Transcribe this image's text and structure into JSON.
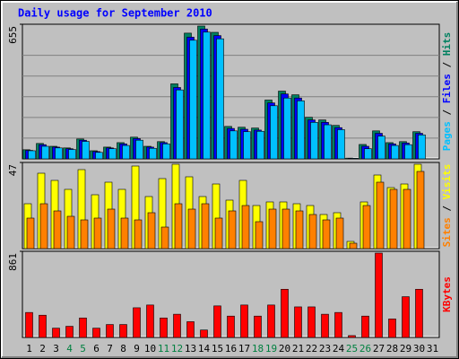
{
  "chart_data": [
    {
      "type": "bar",
      "title": "Daily usage for September 2010",
      "categories": [
        "1",
        "2",
        "3",
        "4",
        "5",
        "6",
        "7",
        "8",
        "9",
        "10",
        "11",
        "12",
        "13",
        "14",
        "15",
        "16",
        "17",
        "18",
        "19",
        "20",
        "21",
        "22",
        "23",
        "24",
        "25",
        "26",
        "27",
        "28",
        "29",
        "30",
        "31"
      ],
      "x_label_colors": [
        "#000000",
        "#000000",
        "#000000",
        "#008040",
        "#008040",
        "#000000",
        "#000000",
        "#000000",
        "#000000",
        "#000000",
        "#008040",
        "#008040",
        "#000000",
        "#000000",
        "#000000",
        "#000000",
        "#000000",
        "#008040",
        "#008040",
        "#000000",
        "#000000",
        "#000000",
        "#000000",
        "#000000",
        "#008040",
        "#008040",
        "#000000",
        "#000000",
        "#000000",
        "#000000",
        "#000000"
      ],
      "ylim": [
        0,
        655
      ],
      "yticks": [
        655
      ],
      "grid": true,
      "series": [
        {
          "name": "Hits",
          "color": "#008060",
          "values": [
            45,
            76,
            62,
            54,
            98,
            40,
            58,
            80,
            107,
            62,
            85,
            370,
            620,
            655,
            624,
            160,
            156,
            152,
            290,
            334,
            316,
            205,
            192,
            165,
            4,
            71,
            138,
            80,
            85,
            134,
            null
          ]
        },
        {
          "name": "Files",
          "color": "#0000ff",
          "values": [
            42,
            70,
            58,
            50,
            92,
            36,
            54,
            74,
            100,
            58,
            80,
            352,
            600,
            640,
            608,
            150,
            146,
            142,
            276,
            320,
            300,
            192,
            180,
            154,
            3,
            62,
            126,
            74,
            78,
            126,
            null
          ]
        },
        {
          "name": "Pages",
          "color": "#00c0ff",
          "values": [
            40,
            62,
            54,
            46,
            86,
            32,
            50,
            66,
            92,
            52,
            74,
            340,
            585,
            625,
            592,
            138,
            134,
            136,
            262,
            300,
            286,
            180,
            168,
            144,
            3,
            50,
            112,
            66,
            70,
            118,
            null
          ]
        }
      ]
    },
    {
      "type": "bar",
      "ylim": [
        0,
        47
      ],
      "yticks": [
        47
      ],
      "grid": false,
      "series": [
        {
          "name": "Visits",
          "color": "#ffff00",
          "values": [
            25,
            42,
            38,
            33,
            44,
            30,
            37,
            33,
            46,
            29,
            39,
            47,
            40,
            29,
            36,
            27,
            38,
            24,
            26,
            26,
            25,
            24,
            19,
            20,
            4,
            26,
            41,
            34,
            36,
            47,
            null
          ]
        },
        {
          "name": "Sites",
          "color": "#ff8000",
          "values": [
            17,
            25,
            21,
            18,
            16,
            17,
            22,
            17,
            16,
            20,
            12,
            25,
            22,
            25,
            17,
            21,
            24,
            15,
            22,
            22,
            21,
            19,
            16,
            17,
            3,
            24,
            37,
            33,
            33,
            43,
            null
          ]
        }
      ]
    },
    {
      "type": "bar",
      "ylim": [
        0,
        861
      ],
      "yticks": [
        861
      ],
      "grid": false,
      "series": [
        {
          "name": "KBytes",
          "color": "#ff0000",
          "values": [
            255,
            227,
            95,
            114,
            199,
            95,
            132,
            132,
            303,
            331,
            199,
            237,
            161,
            76,
            322,
            218,
            331,
            218,
            331,
            492,
            312,
            312,
            237,
            255,
            19,
            218,
            861,
            189,
            416,
            492,
            null
          ]
        }
      ]
    }
  ]
}
